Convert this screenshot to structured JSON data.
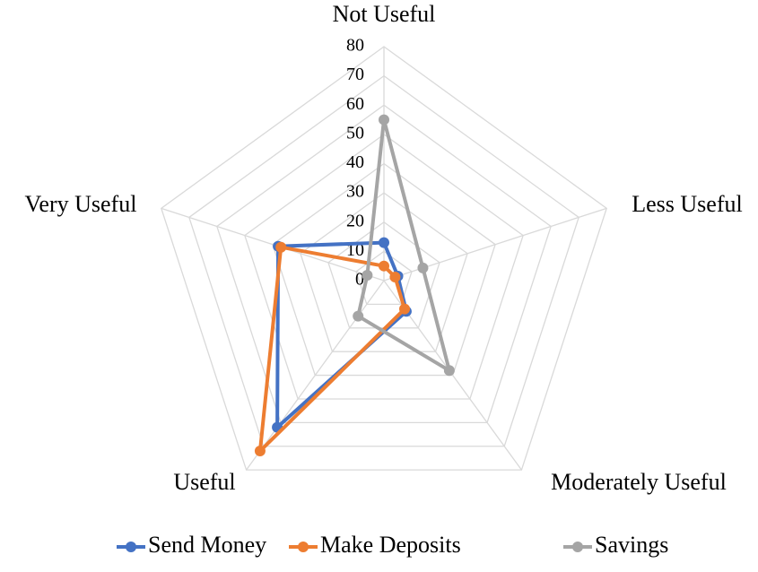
{
  "chart_data": {
    "type": "radar",
    "categories": [
      "Not Useful",
      "Less Useful",
      "Moderately Useful",
      "Useful",
      "Very Useful"
    ],
    "series": [
      {
        "name": "Send Money",
        "color": "#4472c4",
        "values": [
          13,
          5,
          13,
          62,
          38
        ]
      },
      {
        "name": "Make Deposits",
        "color": "#ed7d31",
        "values": [
          5,
          4,
          12,
          72,
          37
        ]
      },
      {
        "name": "Savings",
        "color": "#a5a5a5",
        "values": [
          55,
          14,
          38,
          15,
          6
        ]
      }
    ],
    "ylim": [
      0,
      80
    ],
    "yticks": [
      0,
      10,
      20,
      30,
      40,
      50,
      60,
      70,
      80
    ],
    "grid": true,
    "legend": "bottom"
  }
}
